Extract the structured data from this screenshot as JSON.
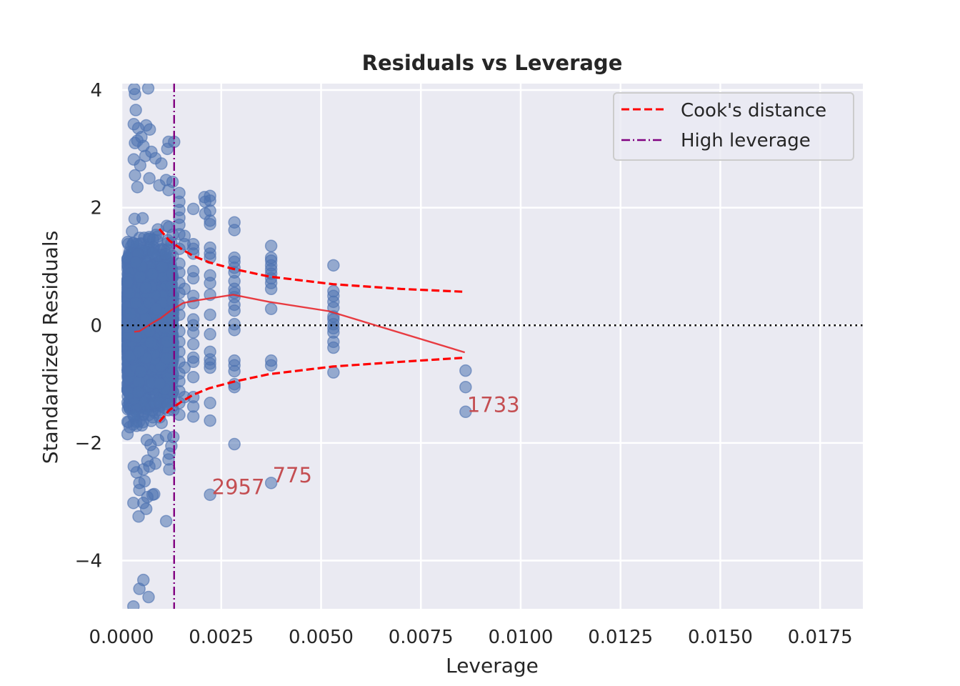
{
  "chart_data": {
    "type": "scatter",
    "title": "Residuals vs Leverage",
    "xlabel": "Leverage",
    "ylabel": "Standardized Residuals",
    "xlim": [
      0.0,
      0.01857
    ],
    "ylim": [
      -4.82,
      4.11
    ],
    "xticks": [
      0.0,
      0.0025,
      0.005,
      0.0075,
      0.01,
      0.0125,
      0.015,
      0.0175
    ],
    "xtick_labels": [
      "0.0000",
      "0.0025",
      "0.0050",
      "0.0075",
      "0.0100",
      "0.0125",
      "0.0150",
      "0.0175"
    ],
    "yticks": [
      4,
      2,
      0,
      -2,
      -4
    ],
    "ytick_labels": [
      "4",
      "2",
      "0",
      "−2",
      "−4"
    ],
    "grid": true,
    "background": "#eaeaf2",
    "point_color": "#4c72b0",
    "legend": {
      "placement": "top-right",
      "entries": [
        {
          "label": "Cook's distance",
          "style": "dashed",
          "color": "#ff0000"
        },
        {
          "label": "High leverage",
          "style": "dashdot",
          "color": "#800080"
        }
      ]
    },
    "series": [
      {
        "name": "observations",
        "kind": "scatter",
        "color": "#4c72b0",
        "dense_band": {
          "x_range": [
            0.00015,
            0.0013
          ],
          "y_range": [
            -2.2,
            2.2
          ],
          "approx_count": 2600
        },
        "points": [
          [
            0.00032,
            4.02
          ],
          [
            0.00034,
            3.93
          ],
          [
            0.00067,
            4.03
          ],
          [
            0.00036,
            3.66
          ],
          [
            0.00031,
            3.42
          ],
          [
            0.00042,
            3.35
          ],
          [
            0.00062,
            3.4
          ],
          [
            0.00071,
            3.33
          ],
          [
            0.00034,
            3.1
          ],
          [
            0.0004,
            3.14
          ],
          [
            0.0005,
            3.2
          ],
          [
            0.00055,
            3.05
          ],
          [
            0.00118,
            3.12
          ],
          [
            0.00132,
            3.12
          ],
          [
            0.00115,
            3.0
          ],
          [
            0.00075,
            2.95
          ],
          [
            0.00031,
            2.82
          ],
          [
            0.0006,
            2.88
          ],
          [
            0.00085,
            2.84
          ],
          [
            0.00047,
            2.72
          ],
          [
            0.001,
            2.75
          ],
          [
            0.00034,
            2.55
          ],
          [
            0.0007,
            2.5
          ],
          [
            0.00112,
            2.47
          ],
          [
            0.00128,
            2.44
          ],
          [
            0.00095,
            2.38
          ],
          [
            0.0004,
            2.35
          ],
          [
            0.00118,
            2.3
          ],
          [
            0.00145,
            2.25
          ],
          [
            0.00145,
            2.1
          ],
          [
            0.00145,
            1.96
          ],
          [
            0.00145,
            1.83
          ],
          [
            0.00145,
            1.71
          ],
          [
            0.00145,
            1.55
          ],
          [
            0.00158,
            1.52
          ],
          [
            0.00158,
            1.38
          ],
          [
            0.00145,
            1.3
          ],
          [
            0.00145,
            1.05
          ],
          [
            0.00145,
            0.9
          ],
          [
            0.00145,
            0.72
          ],
          [
            0.00145,
            0.55
          ],
          [
            0.00145,
            0.35
          ],
          [
            0.00145,
            0.18
          ],
          [
            0.00145,
            -0.1
          ],
          [
            0.00145,
            -0.28
          ],
          [
            0.00145,
            -0.45
          ],
          [
            0.00145,
            -0.62
          ],
          [
            0.00145,
            -0.82
          ],
          [
            0.00145,
            -0.95
          ],
          [
            0.00145,
            -1.12
          ],
          [
            0.00145,
            -1.32
          ],
          [
            0.00145,
            -1.52
          ],
          [
            0.00158,
            -1.22
          ],
          [
            0.00158,
            -0.72
          ],
          [
            0.00158,
            0.62
          ],
          [
            0.0013,
            -1.9
          ],
          [
            0.00125,
            -2.05
          ],
          [
            0.0012,
            -2.18
          ],
          [
            0.00118,
            -2.28
          ],
          [
            0.0012,
            -2.45
          ],
          [
            0.00112,
            -3.33
          ],
          [
            0.00092,
            -1.95
          ],
          [
            0.0008,
            -2.15
          ],
          [
            0.00065,
            -2.3
          ],
          [
            0.0007,
            -2.4
          ],
          [
            0.00085,
            -2.35
          ],
          [
            0.00055,
            -2.45
          ],
          [
            0.00038,
            -2.5
          ],
          [
            0.00031,
            -2.4
          ],
          [
            0.00045,
            -2.68
          ],
          [
            0.00058,
            -2.65
          ],
          [
            0.00082,
            -2.87
          ],
          [
            0.00078,
            -2.88
          ],
          [
            0.00065,
            -2.92
          ],
          [
            0.00045,
            -2.8
          ],
          [
            0.0003,
            -3.02
          ],
          [
            0.00055,
            -3.02
          ],
          [
            0.00062,
            -3.12
          ],
          [
            0.00043,
            -3.25
          ],
          [
            0.00055,
            -4.33
          ],
          [
            0.00045,
            -4.48
          ],
          [
            0.00068,
            -4.62
          ],
          [
            0.0003,
            -4.78
          ],
          [
            0.0018,
            1.98
          ],
          [
            0.0018,
            1.38
          ],
          [
            0.0018,
            1.3
          ],
          [
            0.0018,
            1.22
          ],
          [
            0.0018,
            0.92
          ],
          [
            0.0018,
            0.8
          ],
          [
            0.0018,
            0.5
          ],
          [
            0.0018,
            0.38
          ],
          [
            0.0018,
            0.1
          ],
          [
            0.0018,
            0.0
          ],
          [
            0.0018,
            -0.12
          ],
          [
            0.0018,
            -0.32
          ],
          [
            0.0018,
            -0.55
          ],
          [
            0.0018,
            -0.62
          ],
          [
            0.0018,
            -0.88
          ],
          [
            0.0018,
            -1.22
          ],
          [
            0.0018,
            -1.38
          ],
          [
            0.0018,
            -1.55
          ],
          [
            0.00208,
            2.18
          ],
          [
            0.0021,
            2.1
          ],
          [
            0.0021,
            1.9
          ],
          [
            0.00222,
            2.2
          ],
          [
            0.00222,
            2.12
          ],
          [
            0.00222,
            1.95
          ],
          [
            0.00222,
            1.78
          ],
          [
            0.00222,
            1.72
          ],
          [
            0.00222,
            1.32
          ],
          [
            0.00222,
            1.22
          ],
          [
            0.00222,
            1.15
          ],
          [
            0.00222,
            0.85
          ],
          [
            0.00222,
            0.72
          ],
          [
            0.00222,
            0.52
          ],
          [
            0.00222,
            0.18
          ],
          [
            0.00222,
            -0.15
          ],
          [
            0.00222,
            -0.45
          ],
          [
            0.00222,
            -0.58
          ],
          [
            0.00222,
            -0.65
          ],
          [
            0.00222,
            -0.72
          ],
          [
            0.00222,
            -1.32
          ],
          [
            0.00222,
            -1.62
          ],
          [
            0.00222,
            -2.88
          ],
          [
            0.00283,
            1.75
          ],
          [
            0.00283,
            1.62
          ],
          [
            0.00283,
            1.15
          ],
          [
            0.00283,
            1.08
          ],
          [
            0.00283,
            0.98
          ],
          [
            0.00283,
            0.9
          ],
          [
            0.00283,
            0.75
          ],
          [
            0.00283,
            0.62
          ],
          [
            0.00283,
            0.55
          ],
          [
            0.00283,
            0.48
          ],
          [
            0.00283,
            0.35
          ],
          [
            0.00283,
            0.25
          ],
          [
            0.00283,
            0.02
          ],
          [
            0.00283,
            -0.08
          ],
          [
            0.00283,
            -0.6
          ],
          [
            0.00283,
            -0.68
          ],
          [
            0.00283,
            -0.78
          ],
          [
            0.00283,
            -1.0
          ],
          [
            0.00283,
            -1.05
          ],
          [
            0.00283,
            -2.02
          ],
          [
            0.00375,
            1.35
          ],
          [
            0.00375,
            1.15
          ],
          [
            0.00375,
            1.1
          ],
          [
            0.00375,
            1.02
          ],
          [
            0.00375,
            0.95
          ],
          [
            0.00375,
            0.88
          ],
          [
            0.00375,
            0.8
          ],
          [
            0.00375,
            0.72
          ],
          [
            0.00375,
            0.62
          ],
          [
            0.00375,
            0.28
          ],
          [
            0.00375,
            -0.6
          ],
          [
            0.00375,
            -0.68
          ],
          [
            0.00375,
            -2.68
          ],
          [
            0.00531,
            1.02
          ],
          [
            0.00531,
            0.58
          ],
          [
            0.00531,
            0.5
          ],
          [
            0.00531,
            0.4
          ],
          [
            0.00531,
            0.3
          ],
          [
            0.00531,
            0.15
          ],
          [
            0.00531,
            0.1
          ],
          [
            0.00531,
            0.02
          ],
          [
            0.00531,
            -0.05
          ],
          [
            0.00531,
            -0.12
          ],
          [
            0.00531,
            -0.28
          ],
          [
            0.00531,
            -0.38
          ],
          [
            0.00531,
            -0.8
          ],
          [
            0.00862,
            -0.77
          ],
          [
            0.00862,
            -1.05
          ],
          [
            0.00862,
            -1.47
          ]
        ]
      },
      {
        "name": "lowess",
        "kind": "line",
        "color": "#e8282e",
        "points": [
          [
            0.00032,
            -0.11
          ],
          [
            0.00045,
            -0.1
          ],
          [
            0.00075,
            0.03
          ],
          [
            0.00098,
            0.12
          ],
          [
            0.00125,
            0.26
          ],
          [
            0.00155,
            0.38
          ],
          [
            0.00185,
            0.42
          ],
          [
            0.0028,
            0.52
          ],
          [
            0.0037,
            0.4
          ],
          [
            0.0052,
            0.24
          ],
          [
            0.0086,
            -0.46
          ]
        ]
      },
      {
        "name": "Cook's distance upper",
        "kind": "line",
        "style": "dashed",
        "color": "#ff0000",
        "points": [
          [
            0.00095,
            1.64
          ],
          [
            0.0012,
            1.44
          ],
          [
            0.0015,
            1.3
          ],
          [
            0.0018,
            1.18
          ],
          [
            0.0022,
            1.07
          ],
          [
            0.0028,
            0.96
          ],
          [
            0.0037,
            0.83
          ],
          [
            0.0053,
            0.7
          ],
          [
            0.007,
            0.62
          ],
          [
            0.00862,
            0.57
          ]
        ]
      },
      {
        "name": "Cook's distance lower",
        "kind": "line",
        "style": "dashed",
        "color": "#ff0000",
        "points": [
          [
            0.00095,
            -1.64
          ],
          [
            0.0012,
            -1.44
          ],
          [
            0.0015,
            -1.3
          ],
          [
            0.0018,
            -1.18
          ],
          [
            0.0022,
            -1.07
          ],
          [
            0.0028,
            -0.96
          ],
          [
            0.0037,
            -0.83
          ],
          [
            0.0053,
            -0.7
          ],
          [
            0.007,
            -0.62
          ],
          [
            0.00862,
            -0.55
          ]
        ]
      },
      {
        "name": "High leverage",
        "kind": "vline",
        "style": "dashdot",
        "color": "#800080",
        "x": 0.00132
      },
      {
        "name": "zero line",
        "kind": "hline",
        "style": "dotted",
        "color": "#000000",
        "y": 0
      }
    ],
    "annotations": [
      {
        "text": "1733",
        "x": 0.00862,
        "y": -1.35
      },
      {
        "text": "2957",
        "x": 0.00223,
        "y": -2.75
      },
      {
        "text": "775",
        "x": 0.00375,
        "y": -2.55
      }
    ]
  }
}
